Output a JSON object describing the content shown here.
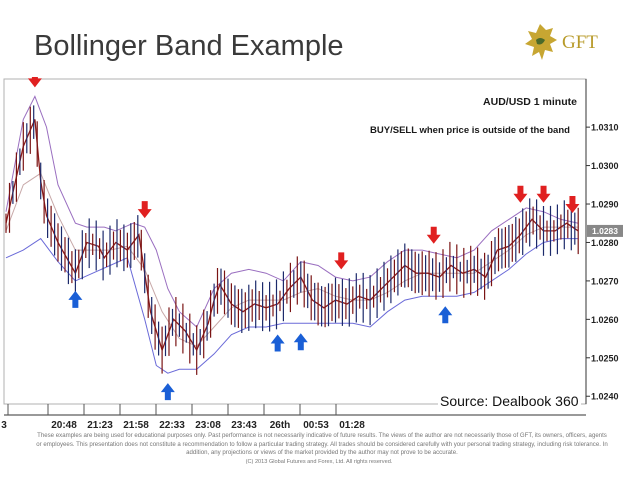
{
  "slide": {
    "title": "Bollinger Band Example",
    "logo_text": "GFT",
    "source": "Source: Dealbook 360",
    "disclaimer": "These examples are being used for educational purposes only. Past performance is not necessarily indicative of future results. The views of the author are not necessarily those of GFT, its owners, officers, agents or employees. This presentation does not constitute a recommendation to follow a particular trading strategy. All trades should be considered carefully with your personal trading strategy, including risk tolerance. In addition, any projections or views of the market provided by the author may not prove to be accurate.",
    "copyright": "(C) 2013 Global Futures and Forex, Ltd. All rights reserved."
  },
  "chart_data": {
    "type": "line",
    "title": "AUD/USD 1 minute",
    "subtitle": "BUY/SELL when price is outside of the band",
    "x_tick_labels": [
      "3",
      "20:48",
      "21:23",
      "21:58",
      "22:33",
      "23:08",
      "23:43",
      "26th",
      "00:53",
      "01:28"
    ],
    "y_ticks": [
      1.031,
      1.03,
      1.029,
      1.028,
      1.027,
      1.026,
      1.025,
      1.024
    ],
    "y_tick_labels": [
      "1.0310",
      "1.0300",
      "1.0290",
      "1.0280",
      "1.0270",
      "1.0260",
      "1.0250",
      "1.0240"
    ],
    "ylim": [
      1.02385,
      1.0322
    ],
    "xlim": [
      0,
      100
    ],
    "current_price": "1.0283",
    "grid": false,
    "series": [
      {
        "name": "",
        "role": "price",
        "color": "#8b1a1a",
        "x": [
          0,
          3,
          5,
          6,
          7,
          9,
          12,
          14,
          16,
          17,
          19,
          21,
          23,
          25,
          27,
          29,
          31,
          33,
          35,
          36,
          37,
          39,
          41,
          43,
          45,
          47,
          49,
          51,
          53,
          55,
          57,
          59,
          61,
          63,
          65,
          67,
          69,
          71,
          73,
          75,
          77,
          79,
          81,
          83,
          85,
          87,
          89,
          91,
          93,
          95,
          97,
          99
        ],
        "y": [
          1.0285,
          1.0305,
          1.0312,
          1.0296,
          1.0287,
          1.028,
          1.0272,
          1.028,
          1.0279,
          1.0276,
          1.028,
          1.0278,
          1.0282,
          1.0262,
          1.0252,
          1.026,
          1.0257,
          1.0252,
          1.0259,
          1.0265,
          1.0269,
          1.0264,
          1.0262,
          1.0264,
          1.0263,
          1.0264,
          1.0268,
          1.0271,
          1.0265,
          1.0263,
          1.0265,
          1.0264,
          1.0266,
          1.0265,
          1.0268,
          1.0271,
          1.0274,
          1.0272,
          1.0272,
          1.0271,
          1.0274,
          1.0272,
          1.0273,
          1.0271,
          1.0278,
          1.0279,
          1.0282,
          1.0286,
          1.0283,
          1.0283,
          1.0285,
          1.0283
        ]
      },
      {
        "name": "",
        "role": "upper band",
        "color": "#9a6fc0",
        "x": [
          0,
          3,
          5,
          7,
          9,
          12,
          14,
          17,
          19,
          22,
          24,
          26,
          28,
          30,
          33,
          36,
          39,
          42,
          45,
          48,
          51,
          54,
          57,
          60,
          63,
          66,
          69,
          72,
          75,
          78,
          81,
          84,
          87,
          90,
          93,
          96,
          99
        ],
        "y": [
          1.0288,
          1.0312,
          1.0318,
          1.031,
          1.0295,
          1.0285,
          1.0284,
          1.0284,
          1.0283,
          1.0285,
          1.0284,
          1.0278,
          1.0268,
          1.0262,
          1.0258,
          1.0268,
          1.0272,
          1.0273,
          1.0272,
          1.027,
          1.0275,
          1.0274,
          1.0271,
          1.027,
          1.0271,
          1.0275,
          1.0278,
          1.0278,
          1.0277,
          1.0276,
          1.0278,
          1.0283,
          1.0286,
          1.0289,
          1.0288,
          1.0286,
          1.0285
        ]
      },
      {
        "name": "",
        "role": "middle band",
        "color": "#c8a9a9",
        "x": [
          0,
          3,
          6,
          9,
          12,
          15,
          18,
          21,
          24,
          27,
          30,
          33,
          36,
          39,
          42,
          45,
          48,
          51,
          54,
          57,
          60,
          63,
          66,
          69,
          72,
          75,
          78,
          81,
          84,
          87,
          90,
          93,
          96,
          99
        ],
        "y": [
          1.0283,
          1.0295,
          1.0298,
          1.0287,
          1.0278,
          1.0278,
          1.0278,
          1.0279,
          1.0273,
          1.0262,
          1.0255,
          1.0253,
          1.0258,
          1.0263,
          1.0265,
          1.0265,
          1.0265,
          1.0267,
          1.0268,
          1.0266,
          1.0265,
          1.0265,
          1.0267,
          1.027,
          1.0272,
          1.0272,
          1.0272,
          1.0272,
          1.0275,
          1.0278,
          1.0282,
          1.0284,
          1.0284,
          1.0284
        ]
      },
      {
        "name": "",
        "role": "lower band",
        "color": "#6a6ad8",
        "x": [
          0,
          3,
          6,
          9,
          12,
          15,
          18,
          21,
          24,
          26,
          28,
          30,
          33,
          36,
          39,
          42,
          45,
          48,
          51,
          54,
          57,
          60,
          63,
          66,
          69,
          72,
          75,
          78,
          81,
          84,
          87,
          90,
          93,
          96,
          99
        ],
        "y": [
          1.0276,
          1.0278,
          1.0281,
          1.0275,
          1.027,
          1.0272,
          1.0274,
          1.0276,
          1.026,
          1.0248,
          1.0246,
          1.0247,
          1.0247,
          1.0251,
          1.0256,
          1.0258,
          1.0258,
          1.0259,
          1.0259,
          1.0259,
          1.0259,
          1.0259,
          1.0258,
          1.0262,
          1.0265,
          1.0266,
          1.0266,
          1.0266,
          1.0267,
          1.027,
          1.0273,
          1.0277,
          1.028,
          1.0281,
          1.0281
        ]
      }
    ],
    "sell_signals_x": [
      5,
      24,
      58,
      74,
      89,
      93,
      98
    ],
    "buy_signals_x": [
      12,
      28,
      47,
      51,
      76
    ]
  }
}
